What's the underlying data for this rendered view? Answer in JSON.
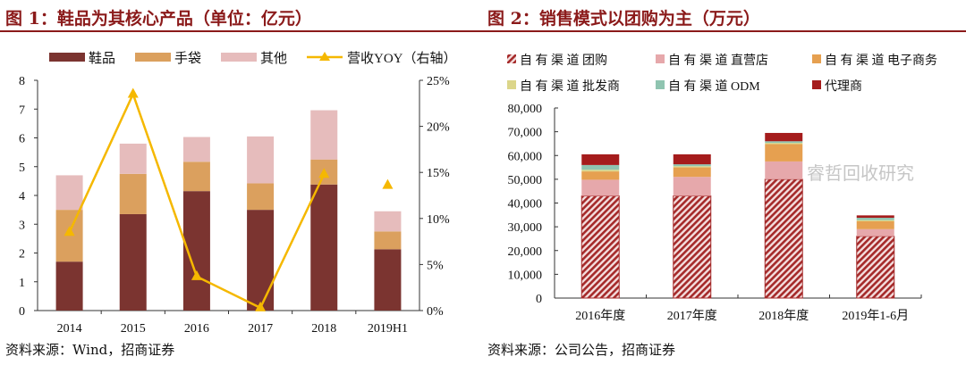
{
  "left": {
    "title": "图 1：鞋品为其核心产品（单位：亿元）",
    "source": "资料来源：Wind，招商证券"
  },
  "right": {
    "title": "图 2：销售模式以团购为主（万元）",
    "source": "资料来源：公司公告，招商证券"
  },
  "watermark": "睿哲回收研究",
  "chart_data": [
    {
      "type": "bar",
      "stacked": true,
      "categories": [
        "2014",
        "2015",
        "2016",
        "2017",
        "2018",
        "2019H1"
      ],
      "ylim": [
        0,
        8
      ],
      "yticks": [
        "0",
        "1",
        "2",
        "3",
        "4",
        "5",
        "6",
        "7",
        "8"
      ],
      "y2lim": [
        0,
        25
      ],
      "y2ticks": [
        "0%",
        "5%",
        "10%",
        "15%",
        "20%",
        "25%"
      ],
      "legend": "top",
      "series": [
        {
          "name": "鞋品",
          "values": [
            1.7,
            3.35,
            4.15,
            3.5,
            4.38,
            2.13
          ],
          "color": "#7b3430"
        },
        {
          "name": "手袋",
          "values": [
            1.8,
            1.4,
            1.02,
            0.92,
            0.87,
            0.62
          ],
          "color": "#dba05e"
        },
        {
          "name": "其他",
          "values": [
            1.2,
            1.05,
            0.86,
            1.63,
            1.71,
            0.7
          ],
          "color": "#e6bcbc"
        }
      ],
      "line": {
        "name": "营收YOY（右轴）",
        "values": [
          8.5,
          23.5,
          3.7,
          0.3,
          14.8,
          13.6
        ],
        "color": "#f5b800",
        "connected_upto": 4
      }
    },
    {
      "type": "bar",
      "stacked": true,
      "categories": [
        "2016年度",
        "2017年度",
        "2018年度",
        "2019年1-6月"
      ],
      "ylim": [
        0,
        80000
      ],
      "yticks": [
        "0",
        "10,000",
        "20,000",
        "30,000",
        "40,000",
        "50,000",
        "60,000",
        "70,000",
        "80,000"
      ],
      "legend": "top",
      "series": [
        {
          "name": "自 有 渠 道 团购",
          "values": [
            43000,
            43000,
            50000,
            26000
          ],
          "color": "#a52a2a",
          "hatched": true
        },
        {
          "name": "自 有 渠 道 直营店",
          "values": [
            6800,
            8000,
            7500,
            3000
          ],
          "color": "#e6a8ab"
        },
        {
          "name": "自 有 渠 道 电子商务",
          "values": [
            3500,
            4000,
            7300,
            3300
          ],
          "color": "#e6a050"
        },
        {
          "name": "自 有 渠 道 批发商",
          "values": [
            700,
            500,
            500,
            500
          ],
          "color": "#dcd68a"
        },
        {
          "name": "自 有 渠 道 ODM",
          "values": [
            2000,
            800,
            700,
            1000
          ],
          "color": "#8fc4b0"
        },
        {
          "name": "代理商",
          "values": [
            4500,
            4200,
            3500,
            1000
          ],
          "color": "#a51c1c"
        }
      ]
    }
  ]
}
